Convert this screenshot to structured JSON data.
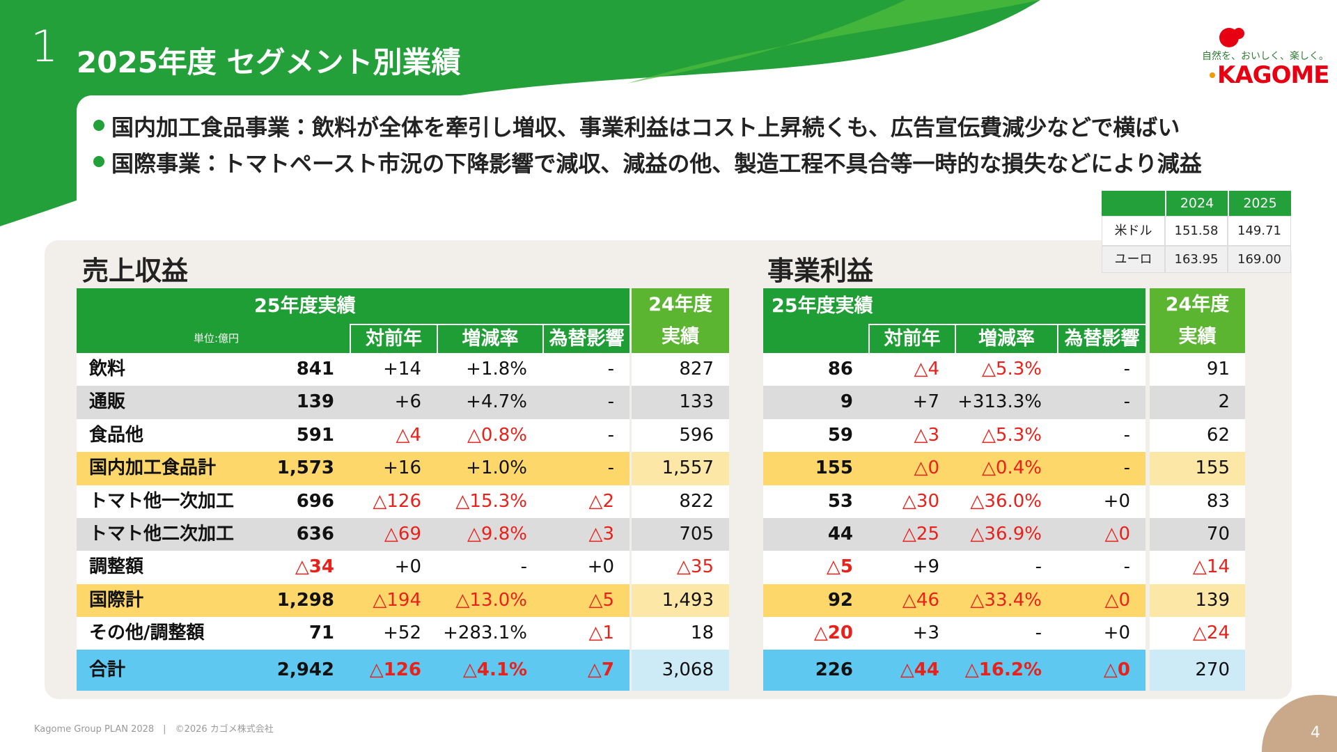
{
  "header": {
    "number": "1",
    "title": "2025年度 セグメント別業績"
  },
  "logo": {
    "tagline": "自然を、おいしく、楽しく。",
    "name": "KAGOME"
  },
  "bullets": [
    "国内加工食品事業：飲料が全体を牽引し増収、事業利益はコスト上昇続くも、広告宣伝費減少などで横ばい",
    "国際事業：トマトペースト市況の下降影響で減収、減益の他、製造工程不具合等一時的な損失などにより減益"
  ],
  "fx_table": {
    "columns": [
      "2024",
      "2025"
    ],
    "rows": [
      [
        "米ドル",
        "151.58",
        "149.71"
      ],
      [
        "ユーロ",
        "163.95",
        "169.00"
      ]
    ]
  },
  "sales": {
    "title": "売上収益",
    "unit": "単位:億円",
    "group_header": "25年度実績",
    "sub_headers": [
      "対前年",
      "増減率",
      "為替影響"
    ],
    "prev_header": [
      "24年度",
      "実績"
    ],
    "rows": [
      [
        "飲料",
        "841",
        "+14",
        "+1.8%",
        "-",
        "827"
      ],
      [
        "通販",
        "139",
        "+6",
        "+4.7%",
        "-",
        "133"
      ],
      [
        "食品他",
        "591",
        "△4",
        "△0.8%",
        "-",
        "596"
      ],
      [
        "国内加工食品計",
        "1,573",
        "+16",
        "+1.0%",
        "-",
        "1,557"
      ],
      [
        "トマト他一次加工",
        "696",
        "△126",
        "△15.3%",
        "△2",
        "822"
      ],
      [
        "トマト他二次加工",
        "636",
        "△69",
        "△9.8%",
        "△3",
        "705"
      ],
      [
        "調整額",
        "△34",
        "+0",
        "-",
        "+0",
        "△35"
      ],
      [
        "国際計",
        "1,298",
        "△194",
        "△13.0%",
        "△5",
        "1,493"
      ],
      [
        "その他/調整額",
        "71",
        "+52",
        "+283.1%",
        "△1",
        "18"
      ],
      [
        "合計",
        "2,942",
        "△126",
        "△4.1%",
        "△7",
        "3,068"
      ]
    ]
  },
  "profit": {
    "title": "事業利益",
    "group_header": "25年度実績",
    "sub_headers": [
      "対前年",
      "増減率",
      "為替影響"
    ],
    "prev_header": [
      "24年度",
      "実績"
    ],
    "rows": [
      [
        "86",
        "△4",
        "△5.3%",
        "-",
        "91"
      ],
      [
        "9",
        "+7",
        "+313.3%",
        "-",
        "2"
      ],
      [
        "59",
        "△3",
        "△5.3%",
        "-",
        "62"
      ],
      [
        "155",
        "△0",
        "△0.4%",
        "-",
        "155"
      ],
      [
        "53",
        "△30",
        "△36.0%",
        "+0",
        "83"
      ],
      [
        "44",
        "△25",
        "△36.9%",
        "△0",
        "70"
      ],
      [
        "△5",
        "+9",
        "-",
        "-",
        "△14"
      ],
      [
        "92",
        "△46",
        "△33.4%",
        "△0",
        "139"
      ],
      [
        "△20",
        "+3",
        "-",
        "+0",
        "△24"
      ],
      [
        "226",
        "△44",
        "△16.2%",
        "△0",
        "270"
      ]
    ]
  },
  "footer": {
    "text": "Kagome Group PLAN 2028　|　©2026 カゴメ株式会社",
    "page": "4"
  }
}
